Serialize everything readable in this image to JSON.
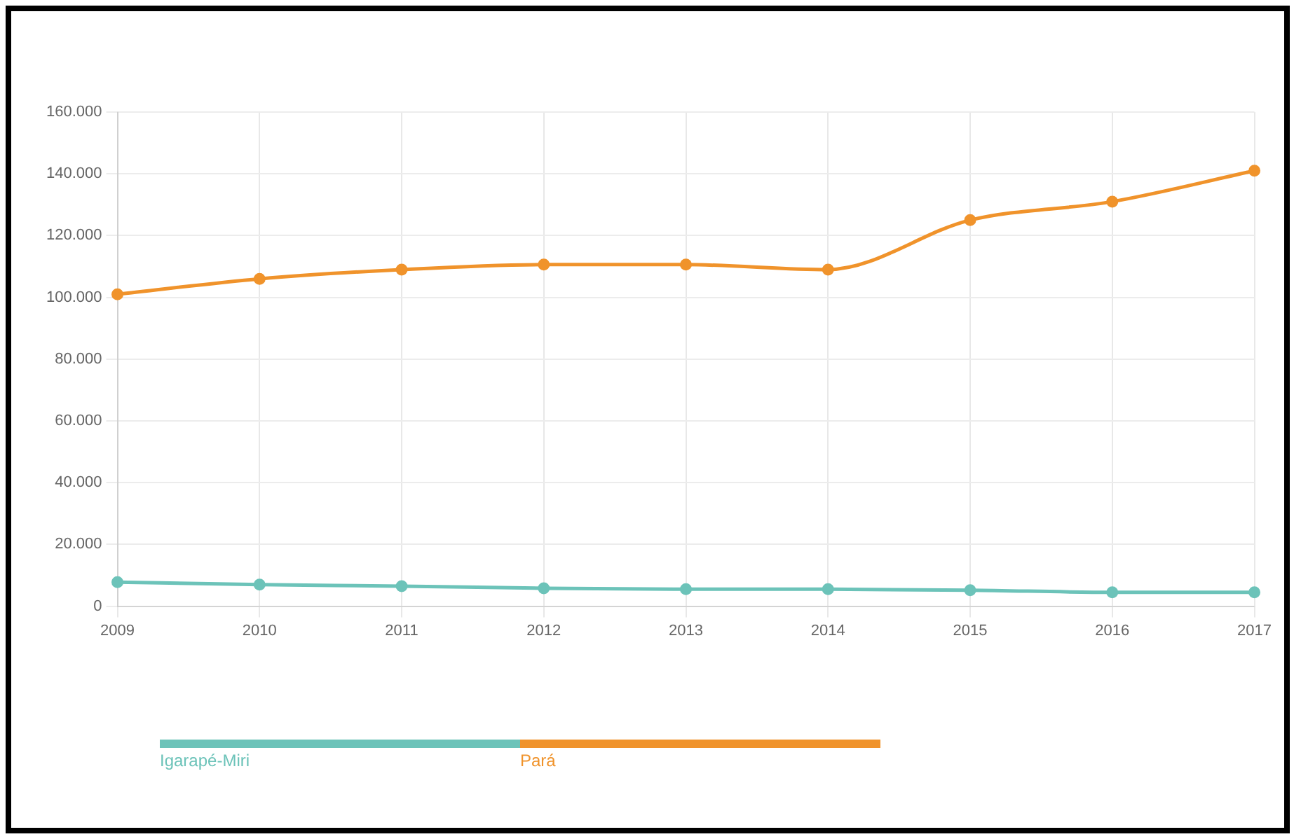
{
  "chart_data": {
    "type": "line",
    "categories": [
      "2009",
      "2010",
      "2011",
      "2012",
      "2013",
      "2014",
      "2015",
      "2016",
      "2017"
    ],
    "series": [
      {
        "name": "Igarapé-Miri",
        "color": "#6cc3b9",
        "values": [
          7800,
          7000,
          6500,
          5800,
          5500,
          5500,
          5200,
          4500,
          4500
        ]
      },
      {
        "name": "Pará",
        "color": "#f0932b",
        "values": [
          101000,
          106000,
          109000,
          110600,
          110600,
          109000,
          125000,
          131000,
          141000
        ]
      }
    ],
    "ylim": [
      0,
      160000
    ],
    "yticks": [
      0,
      {
        "value": 20000,
        "label": "20.000"
      },
      {
        "value": 40000,
        "label": "40.000"
      },
      {
        "value": 60000,
        "label": "60.000"
      },
      {
        "value": 80000,
        "label": "80.000"
      },
      {
        "value": 100000,
        "label": "100.000"
      },
      {
        "value": 120000,
        "label": "120.000"
      },
      {
        "value": 140000,
        "label": "140.000"
      },
      {
        "value": 160000,
        "label": "160.000"
      }
    ],
    "grid": true,
    "legend": "bottom",
    "marker": "circle",
    "line_style": "solid"
  }
}
